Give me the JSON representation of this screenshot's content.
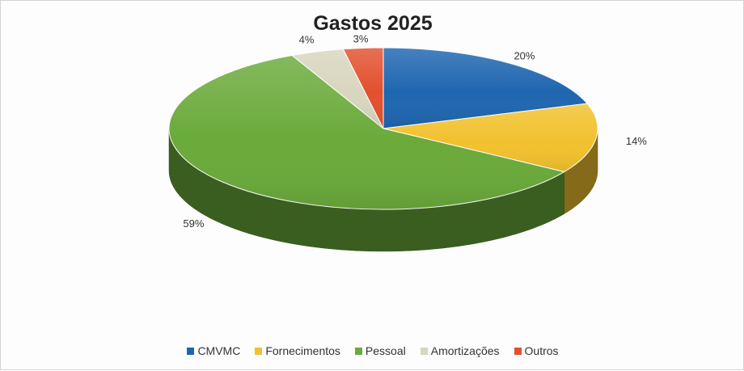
{
  "chart_data": {
    "type": "pie",
    "title": "Gastos 2025",
    "categories": [
      "CMVMC",
      "Fornecimentos",
      "Pessoal",
      "Amortizações",
      "Outros"
    ],
    "values": [
      20,
      14,
      59,
      4,
      3
    ],
    "data_labels": [
      "20%",
      "14%",
      "59%",
      "4%",
      "3%"
    ],
    "colors": [
      "#1f66b0",
      "#f2c12e",
      "#6aaa3a",
      "#d8d6bf",
      "#e2512f"
    ],
    "legend_position": "bottom",
    "style": "3d"
  }
}
